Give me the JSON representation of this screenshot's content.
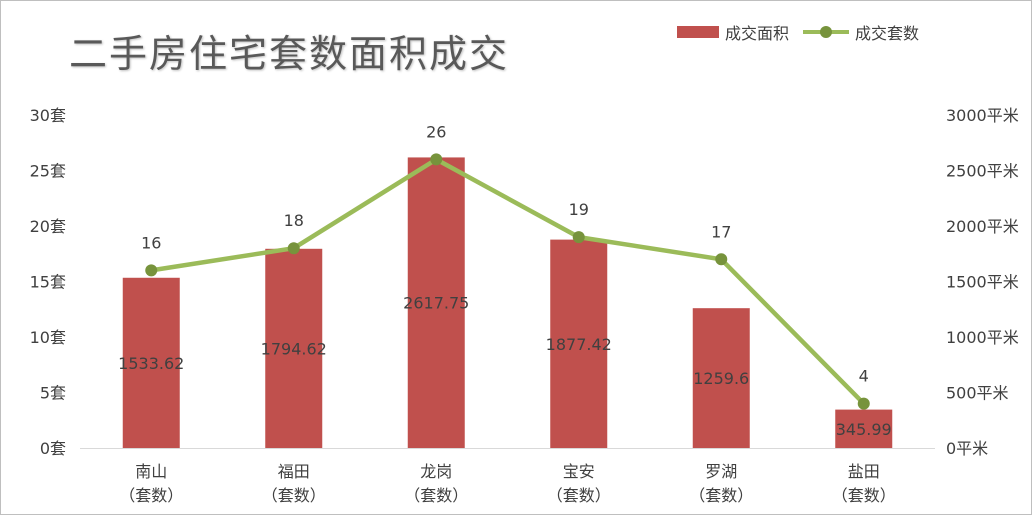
{
  "title": "二手房住宅套数面积成交",
  "colors": {
    "bar": "#c0504d",
    "line": "#9bbb59",
    "marker": "#77933c",
    "axis": "#d9d9d9",
    "text": "#404040"
  },
  "chart_data": {
    "type": "bar",
    "title": "二手房住宅套数面积成交",
    "categories": [
      [
        "南山",
        "（套数）"
      ],
      [
        "福田",
        "（套数）"
      ],
      [
        "龙岗",
        "（套数）"
      ],
      [
        "宝安",
        "（套数）"
      ],
      [
        "罗湖",
        "（套数）"
      ],
      [
        "盐田",
        "（套数）"
      ]
    ],
    "series": [
      {
        "name": "成交面积",
        "type": "bar",
        "axis": "right",
        "values": [
          1533.62,
          1794.62,
          2617.75,
          1877.42,
          1259.6,
          345.99
        ],
        "labels": [
          "1533.62",
          "1794.62",
          "2617.75",
          "1877.42",
          "1259.6",
          "345.99"
        ]
      },
      {
        "name": "成交套数",
        "type": "line",
        "axis": "left",
        "values": [
          16,
          18,
          26,
          19,
          17,
          4
        ],
        "labels": [
          "16",
          "18",
          "26",
          "19",
          "17",
          "4"
        ]
      }
    ],
    "y_left": {
      "min": 0,
      "max": 30,
      "ticks": [
        "0套",
        "5套",
        "10套",
        "15套",
        "20套",
        "25套",
        "30套"
      ]
    },
    "y_right": {
      "min": 0,
      "max": 3000,
      "ticks": [
        "0平米",
        "500平米",
        "1000平米",
        "1500平米",
        "2000平米",
        "2500平米",
        "3000平米"
      ]
    },
    "grid": false,
    "legend": "top-right"
  }
}
